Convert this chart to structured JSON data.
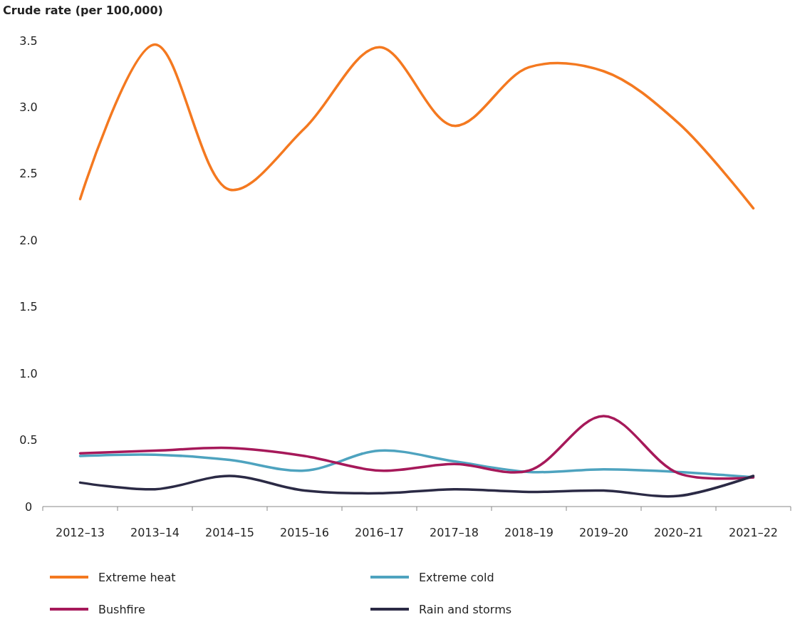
{
  "chart_data": {
    "type": "line",
    "ylabel": "Crude rate (per 100,000)",
    "categories": [
      "2012–13",
      "2013–14",
      "2014–15",
      "2015–16",
      "2016–17",
      "2017–18",
      "2018–19",
      "2019–20",
      "2020–21",
      "2021–22"
    ],
    "ylim": [
      0,
      3.5
    ],
    "yticks": [
      {
        "value": 0,
        "label": "0"
      },
      {
        "value": 0.5,
        "label": "0.5"
      },
      {
        "value": 1,
        "label": "1.0"
      },
      {
        "value": 1.5,
        "label": "1.5"
      },
      {
        "value": 2,
        "label": "2.0"
      },
      {
        "value": 2.5,
        "label": "2.5"
      },
      {
        "value": 3,
        "label": "3.0"
      },
      {
        "value": 3.5,
        "label": "3.5"
      }
    ],
    "grid": false,
    "legend": "bottom",
    "marker": "none",
    "line_style": "solid",
    "series": [
      {
        "name": "Extreme heat",
        "color": "#f47920",
        "values": [
          2.31,
          3.47,
          2.38,
          2.84,
          3.45,
          2.86,
          3.3,
          3.27,
          2.88,
          2.24
        ]
      },
      {
        "name": "Extreme cold",
        "color": "#4ea3bf",
        "values": [
          0.38,
          0.39,
          0.35,
          0.27,
          0.42,
          0.34,
          0.26,
          0.28,
          0.26,
          0.22
        ]
      },
      {
        "name": "Bushfire",
        "color": "#a6195a",
        "values": [
          0.4,
          0.42,
          0.44,
          0.38,
          0.27,
          0.32,
          0.27,
          0.68,
          0.25,
          0.22
        ]
      },
      {
        "name": "Rain and storms",
        "color": "#2b2a45",
        "values": [
          0.18,
          0.13,
          0.23,
          0.12,
          0.1,
          0.13,
          0.11,
          0.12,
          0.08,
          0.23
        ]
      }
    ]
  }
}
